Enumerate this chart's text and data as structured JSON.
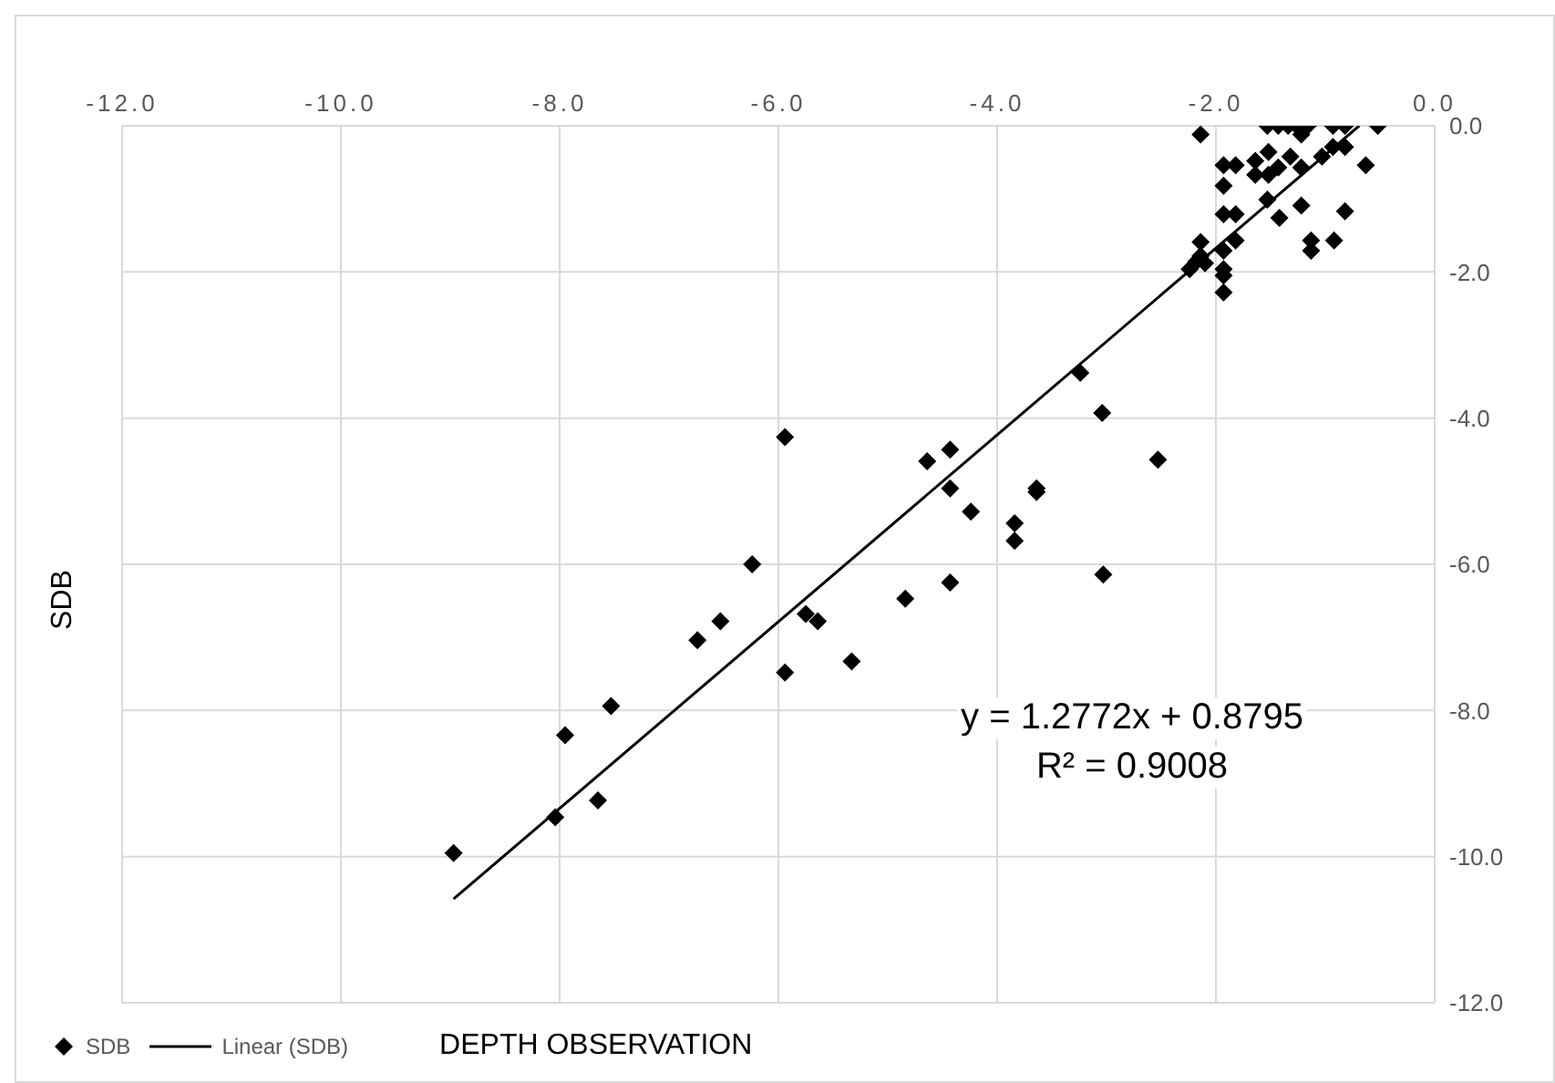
{
  "chart_data": {
    "type": "scatter",
    "xlabel": "DEPTH OBSERVATION",
    "ylabel": "SDB",
    "xlim": [
      -12,
      0
    ],
    "ylim": [
      -12,
      0
    ],
    "xticks": [
      {
        "value": -12,
        "label": "-12.0"
      },
      {
        "value": -10,
        "label": "-10.0"
      },
      {
        "value": -8,
        "label": "-8.0"
      },
      {
        "value": -6,
        "label": "-6.0"
      },
      {
        "value": -4,
        "label": "-4.0"
      },
      {
        "value": -2,
        "label": "-2.0"
      },
      {
        "value": 0,
        "label": "0.0"
      }
    ],
    "yticks": [
      {
        "value": 0,
        "label": "0.0"
      },
      {
        "value": -2,
        "label": "-2.0"
      },
      {
        "value": -4,
        "label": "-4.0"
      },
      {
        "value": -6,
        "label": "-6.0"
      },
      {
        "value": -8,
        "label": "-8.0"
      },
      {
        "value": -10,
        "label": "-10.0"
      },
      {
        "value": -12,
        "label": "-12.0"
      }
    ],
    "grid": true,
    "legend": "bottom left",
    "series": [
      {
        "name": "SDB",
        "marker": "diamond",
        "color": "#000000",
        "x": [
          -2.14,
          -1.53,
          -1.43,
          -1.34,
          -1.26,
          -1.16,
          -0.93,
          -0.82,
          -0.52,
          -1.22,
          -1.93,
          -1.82,
          -1.64,
          -1.52,
          -1.32,
          -1.22,
          -1.64,
          -1.52,
          -1.43,
          -1.03,
          -0.93,
          -0.82,
          -0.63,
          -1.93,
          -1.53,
          -1.22,
          -1.42,
          -0.82,
          -1.93,
          -1.82,
          -2.14,
          -1.82,
          -1.13,
          -1.13,
          -0.92,
          -1.93,
          -2.14,
          -2.18,
          -2.1,
          -2.24,
          -1.93,
          -1.93,
          -1.93,
          -3.24,
          -3.04,
          -5.94,
          -4.64,
          -4.43,
          -4.43,
          -4.24,
          -3.84,
          -3.84,
          -3.64,
          -3.64,
          -2.53,
          -3.03,
          -6.24,
          -6.53,
          -6.74,
          -5.75,
          -5.64,
          -5.94,
          -5.33,
          -4.84,
          -4.43,
          -7.95,
          -7.53,
          -8.04,
          -7.65,
          -8.97
        ],
        "values": [
          -0.12,
          0,
          0,
          0,
          0,
          0,
          0,
          0,
          0,
          -0.12,
          -0.54,
          -0.54,
          -0.48,
          -0.36,
          -0.42,
          -0.57,
          -0.67,
          -0.67,
          -0.57,
          -0.42,
          -0.29,
          -0.29,
          -0.54,
          -0.82,
          -1.01,
          -1.09,
          -1.26,
          -1.17,
          -1.21,
          -1.21,
          -1.59,
          -1.57,
          -1.57,
          -1.71,
          -1.57,
          -1.71,
          -1.78,
          -1.86,
          -1.88,
          -1.96,
          -1.96,
          -2.05,
          -2.28,
          -3.38,
          -3.93,
          -4.26,
          -4.59,
          -4.43,
          -4.96,
          -5.28,
          -5.44,
          -5.68,
          -4.96,
          -5.01,
          -4.57,
          -6.14,
          -6.0,
          -6.78,
          -7.04,
          -6.68,
          -6.78,
          -7.48,
          -7.33,
          -6.47,
          -6.25,
          -8.34,
          -7.94,
          -9.46,
          -9.23,
          -9.95
        ]
      },
      {
        "name": "Linear (SDB)",
        "type": "line",
        "color": "#000000",
        "x": [
          -8.97,
          -0.69
        ],
        "values": [
          -10.58,
          0.0
        ]
      }
    ],
    "annotations": [
      "y = 1.2772x + 0.8795",
      "R² = 0.9008"
    ]
  }
}
